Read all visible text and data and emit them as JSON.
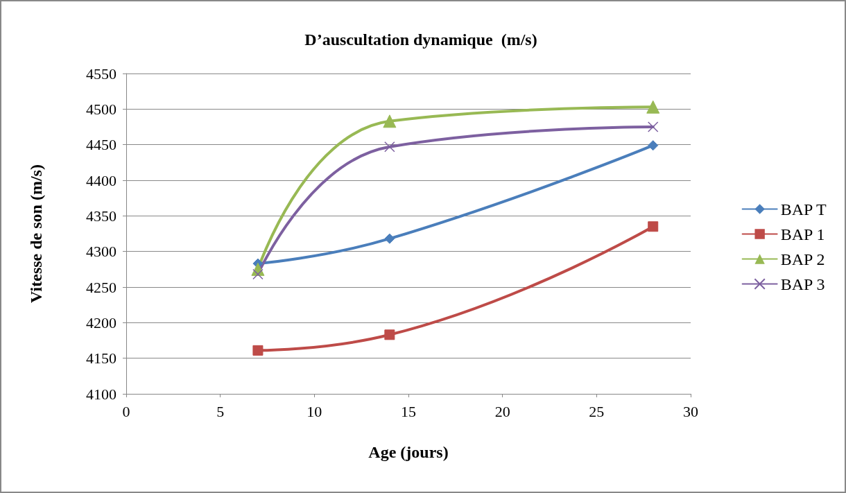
{
  "chart_data": {
    "type": "line",
    "title": "D’auscultation dynamique  (m/s)",
    "xlabel": "Age (jours)",
    "ylabel": "Vitesse de son (m/s)",
    "x": [
      7,
      14,
      28
    ],
    "series": [
      {
        "name": "BAP T",
        "color": "#4a7ebb",
        "values": [
          4283,
          4318,
          4449
        ],
        "marker": "diamond"
      },
      {
        "name": "BAP 1",
        "color": "#be4b48",
        "values": [
          4161,
          4183,
          4335
        ],
        "marker": "square"
      },
      {
        "name": "BAP 2",
        "color": "#98b954",
        "values": [
          4275,
          4483,
          4503
        ],
        "marker": "triangle"
      },
      {
        "name": "BAP 3",
        "color": "#7d60a0",
        "values": [
          4268,
          4447,
          4475
        ],
        "marker": "cross"
      }
    ],
    "xlim": [
      0,
      30
    ],
    "xticks": [
      0,
      5,
      10,
      15,
      20,
      25,
      30
    ],
    "ylim": [
      4100,
      4550
    ],
    "yticks": [
      4100,
      4150,
      4200,
      4250,
      4300,
      4350,
      4400,
      4450,
      4500,
      4550
    ],
    "grid": "y",
    "legend": "right",
    "line_style": "solid"
  }
}
